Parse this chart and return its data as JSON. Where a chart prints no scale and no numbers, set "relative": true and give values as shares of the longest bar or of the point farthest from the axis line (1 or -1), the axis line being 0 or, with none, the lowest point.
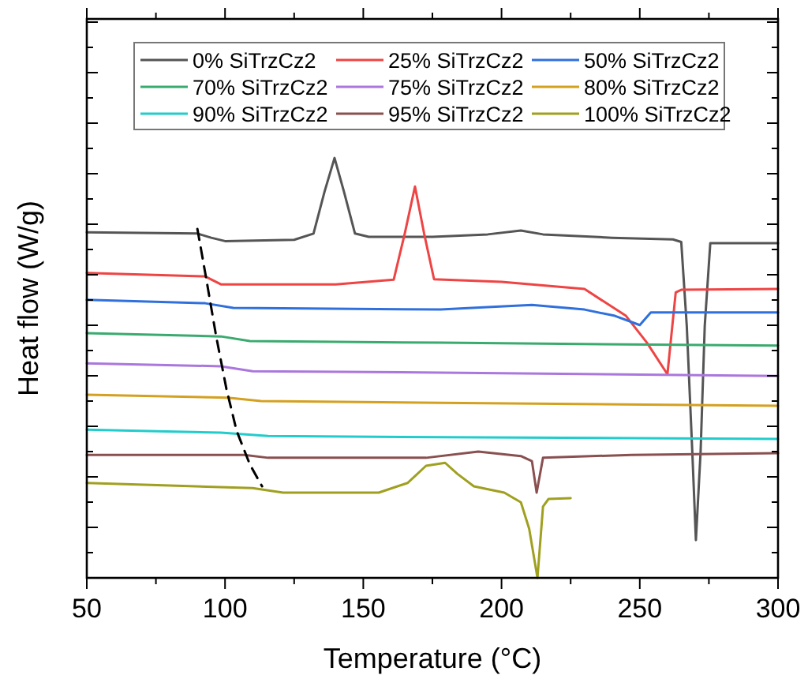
{
  "chart_data": {
    "type": "line",
    "xlabel": "Temperature (°C)",
    "ylabel": "Heat flow (W/g)",
    "relative": true,
    "xlim": [
      50,
      300
    ],
    "xticks": [
      50,
      {
        "value": 75,
        "label": null
      },
      100,
      {
        "value": 125,
        "label": null
      },
      150,
      {
        "value": 175,
        "label": null
      },
      200,
      {
        "value": 225,
        "label": null
      },
      250,
      {
        "value": 275,
        "label": null
      },
      300
    ],
    "legend": "top",
    "grid": false,
    "marker": "none",
    "line_style": "solid",
    "series": [
      {
        "name": "0% SiTrzCz2",
        "color": "#555555",
        "x": [
          50,
          90,
          95,
          100,
          125,
          132,
          136,
          139.6,
          143,
          147,
          152,
          175,
          195,
          207,
          215,
          240,
          262,
          265,
          267,
          269,
          270.3,
          272,
          273.5,
          275.5,
          300
        ],
        "values": [
          0.823,
          0.82,
          0.81,
          0.802,
          0.805,
          0.82,
          0.92,
          1.0,
          0.92,
          0.82,
          0.812,
          0.812,
          0.818,
          0.827,
          0.818,
          0.81,
          0.806,
          0.8,
          0.6,
          0.3,
          0.09,
          0.3,
          0.6,
          0.797,
          0.797
        ]
      },
      {
        "name": "25% SiTrzCz2",
        "color": "#ee4444",
        "x": [
          50,
          92.8,
          98.5,
          140,
          161,
          165,
          168.7,
          172,
          175.6,
          200,
          230,
          245,
          252.6,
          260,
          263,
          265,
          300
        ],
        "values": [
          0.726,
          0.718,
          0.699,
          0.699,
          0.71,
          0.82,
          0.932,
          0.82,
          0.711,
          0.705,
          0.688,
          0.624,
          0.56,
          0.485,
          0.68,
          0.686,
          0.688
        ]
      },
      {
        "name": "50% SiTrzCz2",
        "color": "#3070dd",
        "x": [
          50,
          92.8,
          103,
          178,
          195,
          211,
          230,
          241,
          250,
          254,
          300
        ],
        "values": [
          0.662,
          0.654,
          0.643,
          0.639,
          0.645,
          0.65,
          0.639,
          0.624,
          0.602,
          0.632,
          0.632
        ]
      },
      {
        "name": "70% SiTrzCz2",
        "color": "#3aaa6e",
        "x": [
          50,
          98.5,
          109,
          178,
          300
        ],
        "values": [
          0.583,
          0.575,
          0.564,
          0.56,
          0.553
        ]
      },
      {
        "name": "75% SiTrzCz2",
        "color": "#aa77dd",
        "x": [
          50,
          98.5,
          110,
          178,
          300
        ],
        "values": [
          0.511,
          0.504,
          0.492,
          0.489,
          0.481
        ]
      },
      {
        "name": "80% SiTrzCz2",
        "color": "#d4a020",
        "x": [
          50,
          101,
          113,
          178,
          300
        ],
        "values": [
          0.436,
          0.429,
          0.421,
          0.417,
          0.41
        ]
      },
      {
        "name": "90% SiTrzCz2",
        "color": "#22cccc",
        "x": [
          50,
          98.5,
          115.6,
          178,
          300
        ],
        "values": [
          0.353,
          0.346,
          0.338,
          0.335,
          0.331
        ]
      },
      {
        "name": "95% SiTrzCz2",
        "color": "#8a5050",
        "x": [
          50,
          107,
          115.6,
          172.7,
          191.6,
          207,
          211,
          212.7,
          215,
          247,
          300
        ],
        "values": [
          0.293,
          0.293,
          0.286,
          0.286,
          0.301,
          0.29,
          0.278,
          0.203,
          0.286,
          0.293,
          0.297
        ]
      },
      {
        "name": "100% SiTrzCz2",
        "color": "#a0a020",
        "x": [
          50,
          110,
          121,
          155.6,
          166,
          172.7,
          179.6,
          184,
          190,
          201,
          207,
          210,
          213,
          215,
          217,
          225
        ],
        "values": [
          0.226,
          0.214,
          0.203,
          0.203,
          0.226,
          0.267,
          0.274,
          0.248,
          0.218,
          0.203,
          0.18,
          0.117,
          0.0,
          0.17,
          0.188,
          0.19
        ]
      },
      {
        "color": "#000000",
        "line_style": "dashed",
        "x": [
          90,
          93,
          96.8,
          100.5,
          104.2,
          109,
          113.4
        ],
        "values": [
          0.831,
          0.72,
          0.575,
          0.45,
          0.35,
          0.27,
          0.218
        ]
      }
    ]
  }
}
